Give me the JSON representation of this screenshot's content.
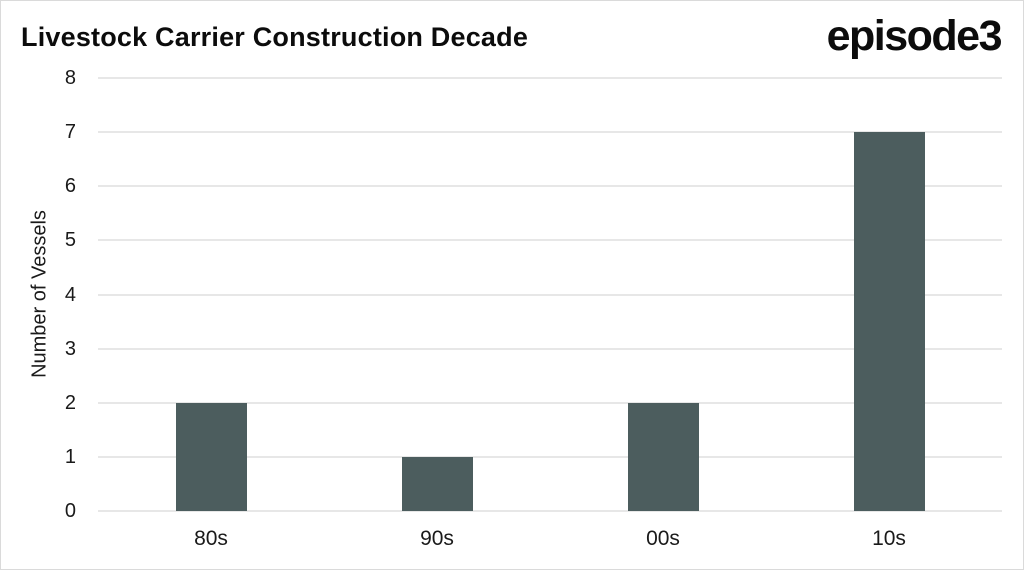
{
  "header": {
    "title": "Livestock Carrier Construction Decade",
    "logo_text": "episode3"
  },
  "chart_data": {
    "type": "bar",
    "title": "Livestock Carrier Construction Decade",
    "categories": [
      "80s",
      "90s",
      "00s",
      "10s"
    ],
    "values": [
      2,
      1,
      2,
      7
    ],
    "xlabel": "",
    "ylabel": "Number of Vessels",
    "ylim": [
      0,
      8
    ],
    "yticks": [
      0,
      1,
      2,
      3,
      4,
      5,
      6,
      7,
      8
    ],
    "grid": "horizontal",
    "legend": "none",
    "bar_color": "#4c5d5e",
    "gridline_color": "#e7e7e7",
    "text_color": "#1a1a1a"
  }
}
